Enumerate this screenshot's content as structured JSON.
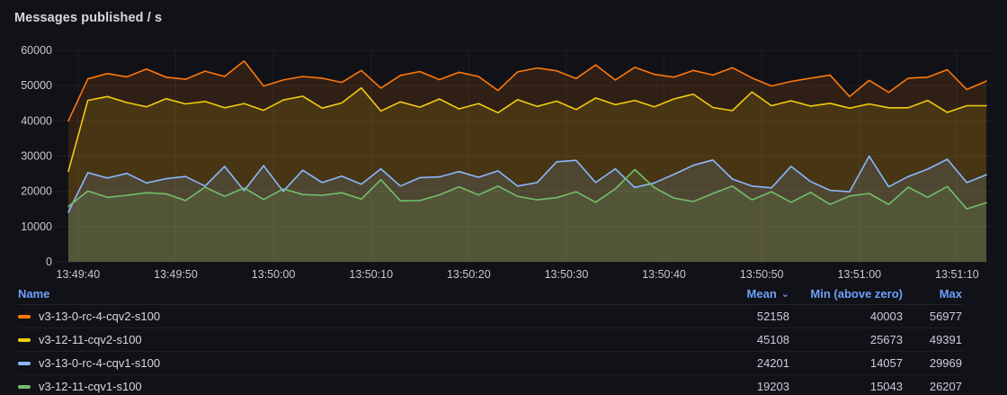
{
  "panel": {
    "title": "Messages published / s"
  },
  "chart_data": {
    "type": "area",
    "title": "Messages published / s",
    "xlabel": "",
    "ylabel": "",
    "grid": true,
    "legend_position": "bottom-table",
    "y_max": 60000,
    "y_ticks": [
      0,
      10000,
      20000,
      30000,
      40000,
      50000,
      60000
    ],
    "t_total_s": 94,
    "step_s": 2,
    "x_ticks": [
      {
        "t": 1,
        "label": "13:49:40"
      },
      {
        "t": 11,
        "label": "13:49:50"
      },
      {
        "t": 21,
        "label": "13:50:00"
      },
      {
        "t": 31,
        "label": "13:50:10"
      },
      {
        "t": 41,
        "label": "13:50:20"
      },
      {
        "t": 51,
        "label": "13:50:30"
      },
      {
        "t": 61,
        "label": "13:50:40"
      },
      {
        "t": 71,
        "label": "13:50:50"
      },
      {
        "t": 81,
        "label": "13:51:00"
      },
      {
        "t": 91,
        "label": "13:51:10"
      }
    ],
    "fill_opacity": 0.13,
    "series": [
      {
        "name": "v3-13-0-rc-4-cqv2-s100",
        "color": "#FF780A",
        "mean": 52158,
        "min_above_zero": 40003,
        "max": 56977,
        "values": [
          40003,
          51900,
          53400,
          52500,
          54700,
          52400,
          51800,
          54100,
          52600,
          56977,
          49900,
          51600,
          52600,
          52100,
          50900,
          54300,
          49300,
          52900,
          54000,
          51700,
          53800,
          52600,
          48600,
          53900,
          55000,
          54200,
          52000,
          55900,
          51600,
          55200,
          53200,
          52400,
          54300,
          53000,
          55100,
          52200,
          49900,
          51200,
          52100,
          53000,
          46900,
          51500,
          48100,
          52100,
          52400,
          54500,
          48900,
          51300
        ]
      },
      {
        "name": "v3-12-11-cqv2-s100",
        "color": "#F2CC0C",
        "mean": 45108,
        "min_above_zero": 25673,
        "max": 49391,
        "values": [
          25673,
          45800,
          46900,
          45200,
          44000,
          46300,
          44800,
          45500,
          43700,
          44900,
          43000,
          45900,
          47000,
          43600,
          45100,
          49391,
          42800,
          45400,
          43900,
          46200,
          43400,
          44900,
          42300,
          46000,
          44100,
          45600,
          43200,
          46500,
          44600,
          45800,
          44000,
          46200,
          47600,
          43800,
          42900,
          48200,
          44300,
          45700,
          44200,
          45000,
          43600,
          44800,
          43700,
          43700,
          45800,
          42400,
          44300,
          44300
        ]
      },
      {
        "name": "v3-13-0-rc-4-cqv1-s100",
        "color": "#8AB8FF",
        "mean": 24201,
        "min_above_zero": 14057,
        "max": 29969,
        "values": [
          14057,
          25300,
          23800,
          25100,
          22400,
          23600,
          24200,
          21500,
          27100,
          20200,
          27300,
          20000,
          26000,
          22500,
          24300,
          22000,
          26400,
          21500,
          23900,
          24100,
          25600,
          24000,
          25800,
          21500,
          22500,
          28400,
          28800,
          22500,
          26400,
          21100,
          22400,
          24800,
          27400,
          28900,
          23500,
          21500,
          21000,
          27100,
          22800,
          20300,
          19900,
          29969,
          21300,
          24200,
          26300,
          29100,
          22500,
          24700
        ]
      },
      {
        "name": "v3-12-11-cqv1-s100",
        "color": "#73BF69",
        "mean": 19203,
        "min_above_zero": 15043,
        "max": 26207,
        "values": [
          15700,
          20100,
          18300,
          18900,
          19600,
          19300,
          17400,
          21200,
          18600,
          21000,
          17700,
          20700,
          19100,
          18900,
          19600,
          17800,
          23300,
          17300,
          17400,
          19000,
          21300,
          19000,
          21500,
          18600,
          17600,
          18200,
          19900,
          16900,
          20700,
          26207,
          21100,
          18100,
          17100,
          19400,
          21500,
          17600,
          19900,
          16900,
          19700,
          16300,
          18700,
          19400,
          16300,
          21200,
          18300,
          21400,
          15043,
          16800
        ]
      }
    ]
  },
  "legend": {
    "columns": {
      "name": "Name",
      "mean": "Mean",
      "min": "Min (above zero)",
      "max": "Max",
      "sort_icon": "⌄"
    }
  }
}
